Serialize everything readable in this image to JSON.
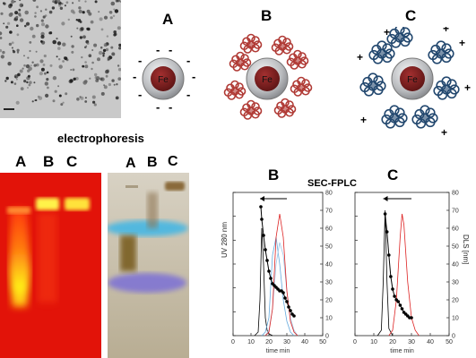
{
  "nanoparticle_panels": [
    {
      "letter": "A",
      "core": "Fe",
      "surface_charge": "-",
      "shell": "none"
    },
    {
      "letter": "B",
      "core": "Fe",
      "surface_charge": "none",
      "shell": "red protein"
    },
    {
      "letter": "C",
      "core": "Fe",
      "surface_charge": "+",
      "shell": "blue protein"
    }
  ],
  "electrophoresis": {
    "title": "electrophoresis",
    "left_gel_lanes": [
      "A",
      "B",
      "C"
    ],
    "right_gel_lanes": [
      "A",
      "B",
      "C"
    ]
  },
  "sec_fplc": {
    "title": "SEC-FPLC",
    "panel_b_label": "B",
    "panel_c_label": "C",
    "y_left_label": "UV 280 nm",
    "y_right_label": "DLS [nm]",
    "x_label": "time min",
    "x_ticks": [
      "0",
      "10",
      "20",
      "30",
      "40",
      "50"
    ],
    "y_ticks": [
      "0",
      "10",
      "20",
      "30",
      "40",
      "50",
      "60",
      "70",
      "80"
    ]
  },
  "colors": {
    "fe_core": "#7a1f1f",
    "shell_ring": "#b5b7ba",
    "protein_red": "#b03a35",
    "protein_blue": "#23486f",
    "gel_left_bg": "#e8160b",
    "gel_right_bg": "#c9bfa6"
  },
  "chart_data": [
    {
      "type": "line",
      "title": "SEC-FPLC",
      "panel": "B",
      "xlabel": "time min",
      "ylabel": "UV 280 nm",
      "y2label": "DLS [nm]",
      "xlim": [
        0,
        50
      ],
      "y2lim": [
        0,
        80
      ],
      "series": [
        {
          "color": "#000000",
          "x": [
            12,
            14,
            15,
            16,
            17,
            18,
            19,
            20,
            22
          ],
          "y": [
            0,
            2,
            20,
            60,
            40,
            10,
            3,
            1,
            0
          ]
        },
        {
          "color": "#66aadd",
          "x": [
            16,
            18,
            20,
            22,
            24,
            26,
            28,
            30,
            32,
            34
          ],
          "y": [
            0,
            2,
            10,
            45,
            55,
            40,
            20,
            8,
            2,
            0
          ]
        },
        {
          "color": "#9ec8e8",
          "x": [
            18,
            20,
            22,
            24,
            26,
            28,
            30,
            32,
            34,
            36
          ],
          "y": [
            0,
            3,
            15,
            40,
            52,
            45,
            25,
            10,
            3,
            0
          ]
        },
        {
          "color": "#dd2222",
          "x": [
            18,
            20,
            22,
            24,
            26,
            28,
            30,
            32,
            34,
            36
          ],
          "y": [
            0,
            2,
            15,
            55,
            68,
            55,
            25,
            8,
            2,
            0
          ]
        },
        {
          "color": "#000000",
          "marker": "dot",
          "axis": "right",
          "x": [
            15.5,
            16,
            17,
            18,
            19,
            20,
            21,
            22,
            23,
            24,
            25,
            26,
            27,
            28,
            29,
            30,
            31,
            32,
            33,
            34
          ],
          "y": [
            72,
            65,
            56,
            48,
            42,
            36,
            32,
            29,
            28,
            27,
            26,
            25,
            25,
            24,
            21,
            19,
            16,
            14,
            12,
            11
          ]
        }
      ]
    },
    {
      "type": "line",
      "panel": "C",
      "xlabel": "time min",
      "y2label": "DLS [nm]",
      "xlim": [
        0,
        50
      ],
      "y2lim": [
        0,
        80
      ],
      "series": [
        {
          "color": "#000000",
          "x": [
            12,
            14,
            15,
            16,
            17,
            18,
            20
          ],
          "y": [
            0,
            3,
            30,
            70,
            30,
            4,
            0
          ]
        },
        {
          "color": "#dd2222",
          "x": [
            18,
            20,
            22,
            24,
            25,
            26,
            28,
            30,
            32,
            34
          ],
          "y": [
            0,
            3,
            20,
            55,
            68,
            62,
            30,
            10,
            3,
            0
          ]
        },
        {
          "color": "#000000",
          "marker": "dot",
          "axis": "right",
          "x": [
            16,
            17,
            18,
            19,
            20,
            21,
            22,
            23,
            24,
            25,
            26,
            27,
            28,
            29,
            30
          ],
          "y": [
            68,
            58,
            45,
            33,
            26,
            22,
            20,
            19,
            17,
            15,
            13,
            12,
            11,
            10,
            10
          ]
        }
      ]
    }
  ]
}
